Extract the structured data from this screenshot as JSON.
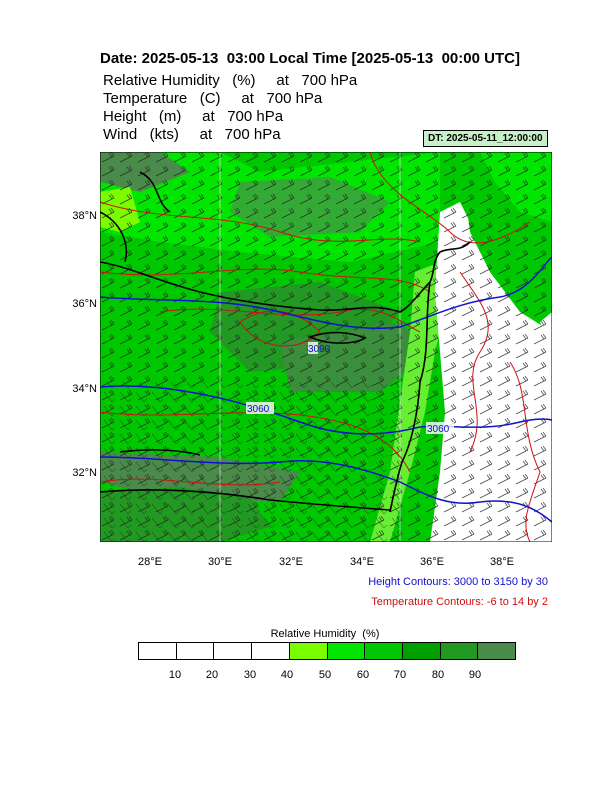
{
  "header": {
    "title": "Date: 2025-05-13  03:00 Local Time [2025-05-13  00:00 UTC]",
    "fields": [
      "Relative Humidity   (%)     at   700 hPa",
      "Temperature   (C)     at   700 hPa",
      "Height   (m)     at   700 hPa",
      "Wind   (kts)     at   700 hPa"
    ],
    "dt_label": "DT: 2025-05-11_12:00:00"
  },
  "map": {
    "lat_labels": [
      "38°N",
      "36°N",
      "34°N",
      "32°N"
    ],
    "lon_labels": [
      "28°E",
      "30°E",
      "32°E",
      "34°E",
      "36°E",
      "38°E"
    ],
    "height_contour_labels": [
      "3090",
      "3060",
      "3060"
    ]
  },
  "legend": {
    "height_contours": "Height Contours: 3000 to 3150 by 30",
    "temperature_contours": "Temperature Contours: -6 to 14 by 2"
  },
  "colorbar": {
    "title": "Relative Humidity  (%)",
    "labels": [
      "10",
      "20",
      "30",
      "40",
      "50",
      "60",
      "70",
      "80",
      "90"
    ],
    "colors": [
      "#ffffff",
      "#ffffff",
      "#ffffff",
      "#ffffff",
      "#7cfc00",
      "#00e600",
      "#00c800",
      "#00a000",
      "#229922",
      "#4a8a4a"
    ]
  },
  "colors": {
    "height_contour": "#1010d0",
    "temperature_contour": "#d01010",
    "coastline": "#000000"
  }
}
